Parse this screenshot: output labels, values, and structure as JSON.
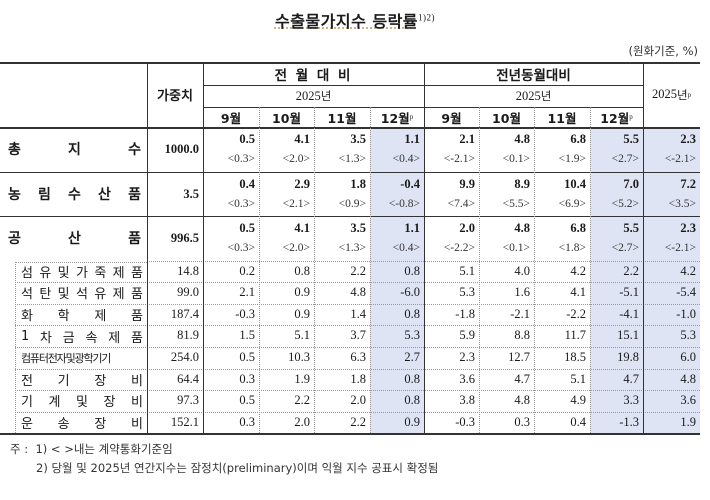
{
  "title": {
    "text": "수출물가지수 등락률",
    "sup": "1)2)"
  },
  "unit": "(원화기준, %)",
  "header": {
    "weight": "가중치",
    "mom": {
      "label": "전 월 대 비",
      "year": "2025",
      "year_suffix": "년",
      "months": [
        "9월",
        "10월",
        "11월",
        "12월"
      ],
      "prelim_mark": "p"
    },
    "yoy": {
      "label": "전년동월대비",
      "year": "2025",
      "year_suffix": "년",
      "months": [
        "9월",
        "10월",
        "11월",
        "12월"
      ],
      "prelim_mark": "p"
    },
    "annual": {
      "year": "2025",
      "year_suffix": "년",
      "prelim_mark": "p"
    }
  },
  "colors": {
    "shade": "#dfe4f5",
    "border": "#333333",
    "dotted": "#999999"
  },
  "rows": [
    {
      "label": "총 지 수",
      "chars": [
        "총",
        "지",
        "수"
      ],
      "weight": "1000.0",
      "mom": [
        "0.5",
        "4.1",
        "3.5",
        "1.1"
      ],
      "mom_contract": [
        "<0.3>",
        "<2.0>",
        "<1.3>",
        "<0.4>"
      ],
      "yoy": [
        "2.1",
        "4.8",
        "6.8",
        "5.5"
      ],
      "yoy_contract": [
        "<-2.1>",
        "<0.1>",
        "<1.9>",
        "<2.7>"
      ],
      "annual": "2.3",
      "annual_contract": "<-2.1>"
    },
    {
      "label": "농 림 수 산 품",
      "chars": [
        "농",
        "림",
        "수",
        "산",
        "품"
      ],
      "weight": "3.5",
      "mom": [
        "0.4",
        "2.9",
        "1.8",
        "-0.4"
      ],
      "mom_contract": [
        "<0.3>",
        "<2.1>",
        "<0.9>",
        "<-0.8>"
      ],
      "yoy": [
        "9.9",
        "8.9",
        "10.4",
        "7.0"
      ],
      "yoy_contract": [
        "<7.4>",
        "<5.5>",
        "<6.9>",
        "<5.2>"
      ],
      "annual": "7.2",
      "annual_contract": "<3.5>"
    },
    {
      "label": "공 산 품",
      "chars": [
        "공",
        "산",
        "품"
      ],
      "weight": "996.5",
      "mom": [
        "0.5",
        "4.1",
        "3.5",
        "1.1"
      ],
      "mom_contract": [
        "<0.3>",
        "<2.0>",
        "<1.3>",
        "<0.4>"
      ],
      "yoy": [
        "2.0",
        "4.8",
        "6.8",
        "5.5"
      ],
      "yoy_contract": [
        "<-2.2>",
        "<0.1>",
        "<1.8>",
        "<2.7>"
      ],
      "annual": "2.3",
      "annual_contract": "<-2.1>"
    }
  ],
  "subrows": [
    {
      "label": "섬유및가죽제품",
      "chars": [
        "섬",
        "유",
        "및",
        "가",
        "죽",
        "제",
        "품"
      ],
      "weight": "14.8",
      "mom": [
        "0.2",
        "0.8",
        "2.2",
        "0.8"
      ],
      "yoy": [
        "5.1",
        "4.0",
        "4.2",
        "2.2"
      ],
      "annual": "4.2"
    },
    {
      "label": "석탄및석유제품",
      "chars": [
        "석",
        "탄",
        "및",
        "석",
        "유",
        "제",
        "품"
      ],
      "weight": "99.0",
      "mom": [
        "2.1",
        "0.9",
        "4.8",
        "-6.0"
      ],
      "yoy": [
        "5.3",
        "1.6",
        "4.1",
        "-5.1"
      ],
      "annual": "-5.4"
    },
    {
      "label": "화 학 제 품",
      "chars": [
        "화",
        "학",
        "제",
        "품"
      ],
      "weight": "187.4",
      "mom": [
        "-0.3",
        "0.9",
        "1.4",
        "0.8"
      ],
      "yoy": [
        "-1.8",
        "-2.1",
        "-2.2",
        "-4.1"
      ],
      "annual": "-1.0"
    },
    {
      "label": "1 차 금 속 제 품",
      "chars": [
        "1",
        "차",
        "금",
        "속",
        "제",
        "품"
      ],
      "weight": "81.9",
      "mom": [
        "1.5",
        "5.1",
        "3.7",
        "5.3"
      ],
      "yoy": [
        "5.9",
        "8.8",
        "11.7",
        "15.1"
      ],
      "annual": "5.3"
    },
    {
      "label": "컴퓨터전자및광학기기",
      "chars": [
        "컴퓨터전자및광학기기"
      ],
      "weight": "254.0",
      "mom": [
        "0.5",
        "10.3",
        "6.3",
        "2.7"
      ],
      "yoy": [
        "2.3",
        "12.7",
        "18.5",
        "19.8"
      ],
      "annual": "6.0"
    },
    {
      "label": "전 기 장 비",
      "chars": [
        "전",
        "기",
        "장",
        "비"
      ],
      "weight": "64.4",
      "mom": [
        "0.3",
        "1.9",
        "1.8",
        "0.8"
      ],
      "yoy": [
        "3.6",
        "4.7",
        "5.1",
        "4.7"
      ],
      "annual": "4.8"
    },
    {
      "label": "기 계 및 장 비",
      "chars": [
        "기",
        "계",
        "및",
        "장",
        "비"
      ],
      "weight": "97.3",
      "mom": [
        "0.5",
        "2.2",
        "2.0",
        "0.8"
      ],
      "yoy": [
        "3.8",
        "4.8",
        "4.9",
        "3.3"
      ],
      "annual": "3.6"
    },
    {
      "label": "운 송 장 비",
      "chars": [
        "운",
        "송",
        "장",
        "비"
      ],
      "weight": "152.1",
      "mom": [
        "0.3",
        "2.0",
        "2.2",
        "0.9"
      ],
      "yoy": [
        "-0.3",
        "0.3",
        "0.4",
        "-1.3"
      ],
      "annual": "1.9"
    }
  ],
  "notes": {
    "prefix": "주 :",
    "items": [
      "1) < >내는 계약통화기준임",
      "2) 당월 및 2025년 연간지수는 잠정치(preliminary)이며 익월 지수 공표시 확정됨"
    ]
  }
}
